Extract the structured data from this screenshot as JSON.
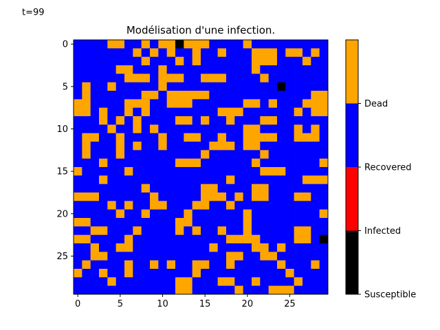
{
  "figure": {
    "timestamp": "t=99"
  },
  "colors": {
    "susceptible": "#000000",
    "infected": "#ff0000",
    "recovered": "#0000ff",
    "dead": "#ffa500"
  },
  "chart_data": {
    "type": "heatmap",
    "title": "Modélisation d'une infection.",
    "xlabel": "",
    "ylabel": "",
    "grid_size": [
      30,
      30
    ],
    "xlim": [
      -0.5,
      29.5
    ],
    "ylim": [
      29.5,
      -0.5
    ],
    "xticks": [
      0,
      5,
      10,
      15,
      20,
      25
    ],
    "yticks": [
      0,
      5,
      10,
      15,
      20,
      25
    ],
    "state_codes": {
      "0": "Susceptible",
      "1": "Infected",
      "2": "Recovered",
      "3": "Dead"
    },
    "colorbar": {
      "range": [
        0,
        3
      ],
      "ticks": [
        {
          "value": 0,
          "label": "Susceptible"
        },
        {
          "value": 0.75,
          "label": "Infected"
        },
        {
          "value": 1.5,
          "label": "Recovered"
        },
        {
          "value": 2.25,
          "label": "Dead"
        }
      ],
      "bands": [
        {
          "from": 0,
          "to": 0.75,
          "color": "#000000"
        },
        {
          "from": 0.75,
          "to": 1.5,
          "color": "#ff0000"
        },
        {
          "from": 1.5,
          "to": 2.25,
          "color": "#0000ff"
        },
        {
          "from": 2.25,
          "to": 3,
          "color": "#ffa500"
        }
      ]
    },
    "grid": [
      [
        2,
        2,
        2,
        2,
        3,
        3,
        2,
        2,
        3,
        2,
        3,
        3,
        0,
        3,
        3,
        3,
        2,
        2,
        2,
        2,
        3,
        2,
        2,
        2,
        2,
        2,
        2,
        2,
        2,
        2
      ],
      [
        2,
        2,
        2,
        2,
        2,
        2,
        2,
        3,
        2,
        3,
        2,
        3,
        2,
        2,
        3,
        2,
        2,
        3,
        2,
        2,
        2,
        3,
        3,
        3,
        2,
        3,
        3,
        2,
        3,
        2
      ],
      [
        2,
        2,
        2,
        2,
        2,
        2,
        2,
        2,
        3,
        2,
        2,
        2,
        3,
        2,
        3,
        2,
        2,
        2,
        2,
        2,
        2,
        3,
        3,
        3,
        2,
        2,
        2,
        3,
        2,
        2
      ],
      [
        2,
        2,
        2,
        2,
        2,
        3,
        3,
        2,
        2,
        2,
        3,
        2,
        2,
        2,
        2,
        2,
        2,
        2,
        2,
        2,
        2,
        3,
        2,
        2,
        2,
        2,
        2,
        2,
        2,
        2
      ],
      [
        2,
        2,
        2,
        2,
        2,
        2,
        3,
        3,
        3,
        2,
        3,
        3,
        3,
        2,
        2,
        3,
        3,
        3,
        2,
        2,
        2,
        2,
        3,
        2,
        2,
        2,
        2,
        2,
        2,
        2
      ],
      [
        2,
        3,
        2,
        2,
        3,
        2,
        2,
        2,
        2,
        2,
        3,
        2,
        2,
        2,
        2,
        2,
        2,
        2,
        2,
        2,
        2,
        2,
        2,
        2,
        0,
        2,
        2,
        2,
        2,
        2
      ],
      [
        2,
        3,
        2,
        2,
        2,
        2,
        2,
        2,
        3,
        3,
        2,
        3,
        3,
        3,
        3,
        3,
        2,
        2,
        2,
        2,
        2,
        2,
        2,
        2,
        2,
        2,
        2,
        2,
        3,
        3
      ],
      [
        3,
        3,
        2,
        2,
        2,
        2,
        3,
        3,
        3,
        2,
        2,
        3,
        3,
        3,
        2,
        2,
        2,
        2,
        2,
        2,
        3,
        3,
        2,
        3,
        2,
        2,
        2,
        3,
        3,
        3
      ],
      [
        3,
        3,
        2,
        3,
        2,
        2,
        3,
        2,
        3,
        2,
        2,
        2,
        2,
        2,
        2,
        2,
        2,
        3,
        3,
        3,
        2,
        2,
        2,
        2,
        2,
        2,
        3,
        2,
        3,
        3
      ],
      [
        2,
        2,
        2,
        3,
        2,
        3,
        2,
        3,
        2,
        2,
        2,
        2,
        3,
        3,
        2,
        3,
        2,
        2,
        3,
        2,
        2,
        2,
        3,
        3,
        2,
        2,
        2,
        2,
        2,
        2
      ],
      [
        2,
        2,
        2,
        2,
        3,
        2,
        2,
        3,
        2,
        3,
        2,
        2,
        2,
        2,
        2,
        2,
        2,
        2,
        2,
        2,
        3,
        3,
        2,
        2,
        2,
        2,
        3,
        2,
        3,
        2
      ],
      [
        2,
        3,
        3,
        2,
        2,
        3,
        2,
        2,
        2,
        2,
        3,
        2,
        2,
        3,
        3,
        2,
        2,
        3,
        2,
        2,
        3,
        3,
        3,
        3,
        2,
        2,
        3,
        3,
        3,
        2
      ],
      [
        2,
        3,
        2,
        2,
        2,
        3,
        2,
        3,
        2,
        2,
        3,
        2,
        2,
        2,
        2,
        2,
        3,
        3,
        3,
        2,
        3,
        3,
        2,
        2,
        2,
        2,
        2,
        2,
        2,
        2
      ],
      [
        2,
        3,
        2,
        2,
        2,
        3,
        2,
        2,
        2,
        2,
        2,
        2,
        2,
        2,
        2,
        3,
        2,
        2,
        2,
        2,
        2,
        2,
        3,
        2,
        2,
        2,
        2,
        2,
        2,
        2
      ],
      [
        2,
        2,
        2,
        3,
        2,
        2,
        2,
        2,
        2,
        2,
        2,
        2,
        3,
        3,
        3,
        2,
        2,
        2,
        2,
        2,
        2,
        3,
        2,
        2,
        2,
        2,
        2,
        2,
        2,
        3
      ],
      [
        3,
        2,
        2,
        2,
        2,
        2,
        3,
        2,
        2,
        2,
        2,
        2,
        2,
        2,
        2,
        2,
        2,
        2,
        2,
        2,
        2,
        2,
        3,
        3,
        3,
        2,
        2,
        2,
        2,
        2
      ],
      [
        2,
        2,
        2,
        3,
        2,
        2,
        2,
        2,
        2,
        2,
        2,
        2,
        2,
        2,
        2,
        2,
        2,
        2,
        3,
        2,
        2,
        2,
        2,
        2,
        2,
        2,
        2,
        3,
        3,
        3
      ],
      [
        2,
        2,
        2,
        2,
        2,
        2,
        2,
        2,
        3,
        2,
        2,
        2,
        2,
        2,
        2,
        3,
        3,
        2,
        2,
        2,
        2,
        3,
        3,
        2,
        2,
        2,
        2,
        2,
        2,
        2
      ],
      [
        3,
        3,
        3,
        2,
        2,
        2,
        2,
        2,
        2,
        3,
        2,
        2,
        2,
        2,
        2,
        3,
        3,
        3,
        2,
        3,
        2,
        3,
        3,
        2,
        2,
        2,
        3,
        3,
        2,
        2
      ],
      [
        2,
        2,
        2,
        2,
        3,
        2,
        3,
        2,
        2,
        3,
        3,
        2,
        2,
        2,
        3,
        3,
        2,
        2,
        3,
        2,
        2,
        2,
        2,
        2,
        2,
        2,
        2,
        2,
        2,
        2
      ],
      [
        2,
        2,
        2,
        2,
        2,
        3,
        2,
        2,
        3,
        2,
        2,
        2,
        2,
        3,
        2,
        2,
        2,
        2,
        2,
        2,
        3,
        2,
        2,
        2,
        2,
        2,
        2,
        2,
        2,
        3
      ],
      [
        3,
        3,
        2,
        2,
        2,
        2,
        2,
        2,
        2,
        2,
        2,
        2,
        3,
        3,
        2,
        2,
        2,
        2,
        2,
        2,
        3,
        2,
        2,
        2,
        2,
        2,
        2,
        2,
        2,
        2
      ],
      [
        2,
        2,
        3,
        3,
        2,
        2,
        2,
        3,
        2,
        2,
        2,
        2,
        3,
        2,
        3,
        2,
        2,
        3,
        2,
        2,
        3,
        2,
        2,
        2,
        2,
        2,
        3,
        3,
        2,
        2
      ],
      [
        3,
        3,
        2,
        2,
        2,
        2,
        3,
        2,
        2,
        2,
        2,
        2,
        2,
        2,
        2,
        2,
        2,
        2,
        3,
        3,
        3,
        3,
        2,
        2,
        2,
        2,
        3,
        3,
        2,
        0
      ],
      [
        2,
        2,
        3,
        2,
        2,
        3,
        3,
        2,
        2,
        2,
        2,
        2,
        2,
        2,
        2,
        2,
        3,
        2,
        2,
        2,
        2,
        3,
        3,
        2,
        3,
        2,
        2,
        2,
        2,
        2
      ],
      [
        2,
        2,
        3,
        3,
        2,
        2,
        2,
        2,
        2,
        2,
        2,
        2,
        2,
        2,
        2,
        2,
        2,
        2,
        3,
        3,
        2,
        2,
        3,
        3,
        2,
        2,
        2,
        2,
        2,
        2
      ],
      [
        2,
        3,
        2,
        2,
        2,
        2,
        3,
        2,
        2,
        3,
        2,
        3,
        2,
        2,
        3,
        3,
        2,
        2,
        3,
        2,
        2,
        2,
        2,
        2,
        3,
        2,
        2,
        2,
        3,
        2
      ],
      [
        3,
        2,
        2,
        3,
        2,
        2,
        3,
        2,
        2,
        2,
        2,
        2,
        2,
        2,
        3,
        2,
        2,
        2,
        2,
        2,
        2,
        2,
        2,
        2,
        2,
        3,
        2,
        2,
        2,
        2
      ],
      [
        2,
        2,
        2,
        2,
        3,
        2,
        2,
        2,
        2,
        2,
        2,
        2,
        3,
        3,
        2,
        2,
        2,
        3,
        3,
        2,
        2,
        3,
        2,
        2,
        2,
        2,
        3,
        2,
        2,
        2
      ],
      [
        2,
        2,
        2,
        2,
        2,
        2,
        2,
        2,
        2,
        2,
        2,
        2,
        3,
        3,
        2,
        2,
        2,
        2,
        2,
        3,
        2,
        2,
        2,
        3,
        3,
        3,
        2,
        2,
        2,
        2
      ]
    ]
  }
}
